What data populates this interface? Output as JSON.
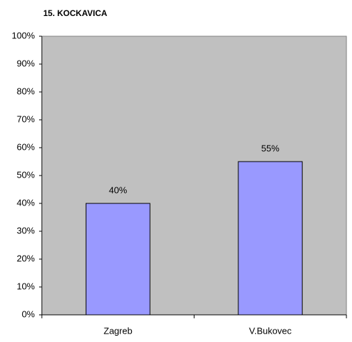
{
  "chart_data": {
    "type": "bar",
    "title": "15. KOCKAVICA",
    "categories": [
      "Zagreb",
      "V.Bukovec"
    ],
    "values": [
      40,
      55
    ],
    "value_labels": [
      "40%",
      "55%"
    ],
    "color": "#9999ff",
    "ylim": [
      0,
      100
    ],
    "yticks": [
      {
        "value": 0,
        "label": "0%"
      },
      {
        "value": 10,
        "label": "10%"
      },
      {
        "value": 20,
        "label": "20%"
      },
      {
        "value": 30,
        "label": "30%"
      },
      {
        "value": 40,
        "label": "40%"
      },
      {
        "value": 50,
        "label": "50%"
      },
      {
        "value": 60,
        "label": "60%"
      },
      {
        "value": 70,
        "label": "70%"
      },
      {
        "value": 80,
        "label": "80%"
      },
      {
        "value": 90,
        "label": "90%"
      },
      {
        "value": 100,
        "label": "100%"
      }
    ],
    "grid": false
  }
}
